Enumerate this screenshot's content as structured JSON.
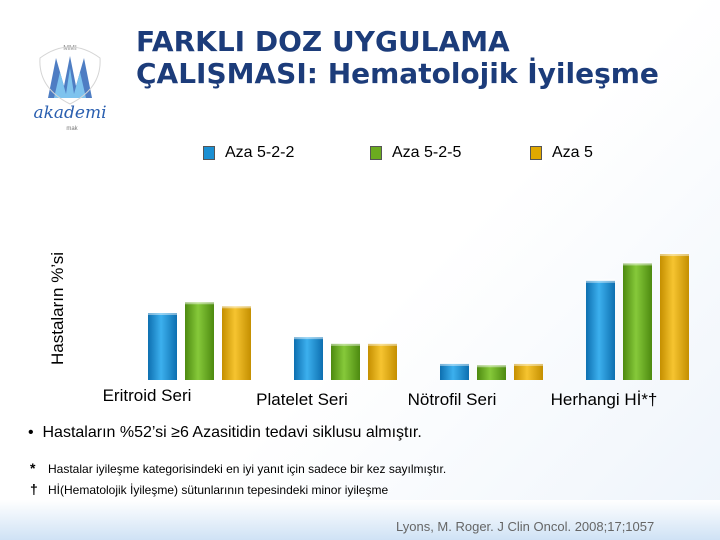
{
  "title_line1": "FARKLI DOZ UYGULAMA",
  "title_line2": "ÇALIŞMASI: Hematolojik İyileşme",
  "logo": {
    "brand": "akademi",
    "top_text": "MMI",
    "bottom_text": "mak"
  },
  "chart_data": {
    "type": "bar",
    "categories": [
      "Eritroid Seri",
      "Platelet Seri",
      "Nötrofil Seri",
      "Herhangi Hİ*†"
    ],
    "ylabel": "Hastaların %’si",
    "ylim": [
      0,
      100
    ],
    "series": [
      {
        "name": "Aza 5-2-2",
        "color": "#1b8fd2",
        "values": [
          50,
          32,
          12,
          74
        ]
      },
      {
        "name": "Aza 5-2-5",
        "color": "#6bab1f",
        "values": [
          58,
          27,
          11,
          87
        ]
      },
      {
        "name": "Aza 5",
        "color": "#e0a800",
        "values": [
          55,
          27,
          12,
          94
        ]
      }
    ]
  },
  "bullet": "Hastaların %52’si ≥6 Azasitidin tedavi siklusu almıştır.",
  "notes": [
    {
      "symbol": "*",
      "text": "Hastalar iyileşme kategorisindeki en iyi yanıt için sadece bir kez sayılmıştır."
    },
    {
      "symbol": "†",
      "text": "Hİ(Hematolojik İyileşme)  sütunlarının tepesindeki minor iyileşme"
    }
  ],
  "citation": "Lyons, M. Roger. J Clin Oncol. 2008;17;1057"
}
